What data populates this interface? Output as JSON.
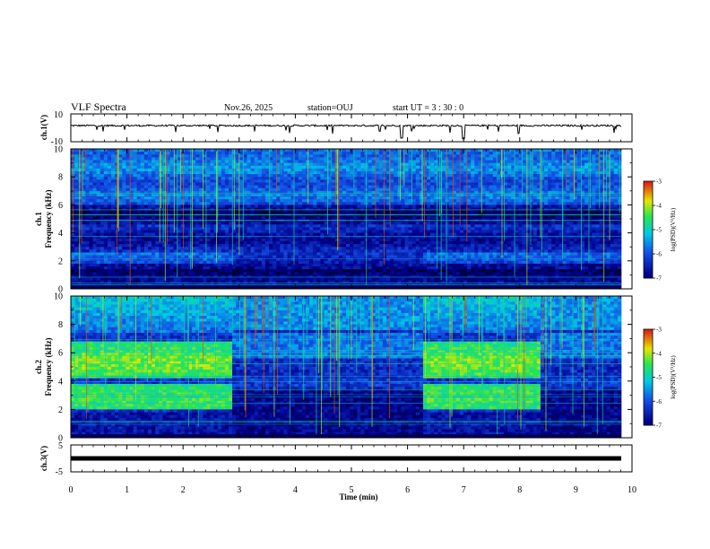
{
  "header": {
    "title": "VLF Spectra",
    "date": "Nov.26, 2025",
    "station": "station=OUJ",
    "start": "start  UT =   3  : 30 : 0"
  },
  "chart_data": [
    {
      "type": "line",
      "panel": "ch1-waveform",
      "ylabel": "ch.1(V)",
      "ylim": [
        -10,
        10
      ],
      "y_ticks": [
        "10",
        "-10"
      ],
      "baseline_value": 0,
      "description_series": "near-zero waveform with sporadic negative spikes"
    },
    {
      "type": "heatmap",
      "panel": "ch1-spectrogram",
      "ylabel": "ch.1\nFrequency (kHz)",
      "ylim": [
        0,
        10
      ],
      "y_ticks": [
        "0",
        "2",
        "4",
        "6",
        "8",
        "10"
      ],
      "xlim": [
        0,
        10
      ],
      "colorbar": {
        "label": "log(PSD)(V²/Hz)",
        "range": [
          -7,
          -3
        ],
        "ticks": [
          "-3",
          "-4",
          "-5",
          "-6",
          "-7"
        ]
      }
    },
    {
      "type": "heatmap",
      "panel": "ch2-spectrogram",
      "ylabel": "ch.2\nFrequency (kHz)",
      "ylim": [
        0,
        10
      ],
      "y_ticks": [
        "0",
        "2",
        "4",
        "6",
        "8",
        "10"
      ],
      "xlim": [
        0,
        10
      ],
      "colorbar": {
        "label": "log(PSD)(V²/Hz)",
        "range": [
          -7,
          -3
        ],
        "ticks": [
          "-3",
          "-4",
          "-5",
          "-6",
          "-7"
        ]
      },
      "segments": [
        {
          "t0": 0.0,
          "t1": 2.9,
          "state": "strong"
        },
        {
          "t0": 2.9,
          "t1": 6.3,
          "state": "weak"
        },
        {
          "t0": 6.3,
          "t1": 8.35,
          "state": "strong"
        },
        {
          "t0": 8.35,
          "t1": 9.8,
          "state": "weak"
        }
      ]
    },
    {
      "type": "line",
      "panel": "ch3-waveform",
      "ylabel": "ch.3(V)",
      "ylim": [
        -5,
        5
      ],
      "y_ticks": [
        "5",
        "-5"
      ],
      "baseline_value": -1,
      "xlabel": "Time  (min)",
      "xlim": [
        0,
        10
      ],
      "x_ticks": [
        "0",
        "1",
        "2",
        "3",
        "4",
        "5",
        "6",
        "7",
        "8",
        "9",
        "10"
      ]
    }
  ]
}
